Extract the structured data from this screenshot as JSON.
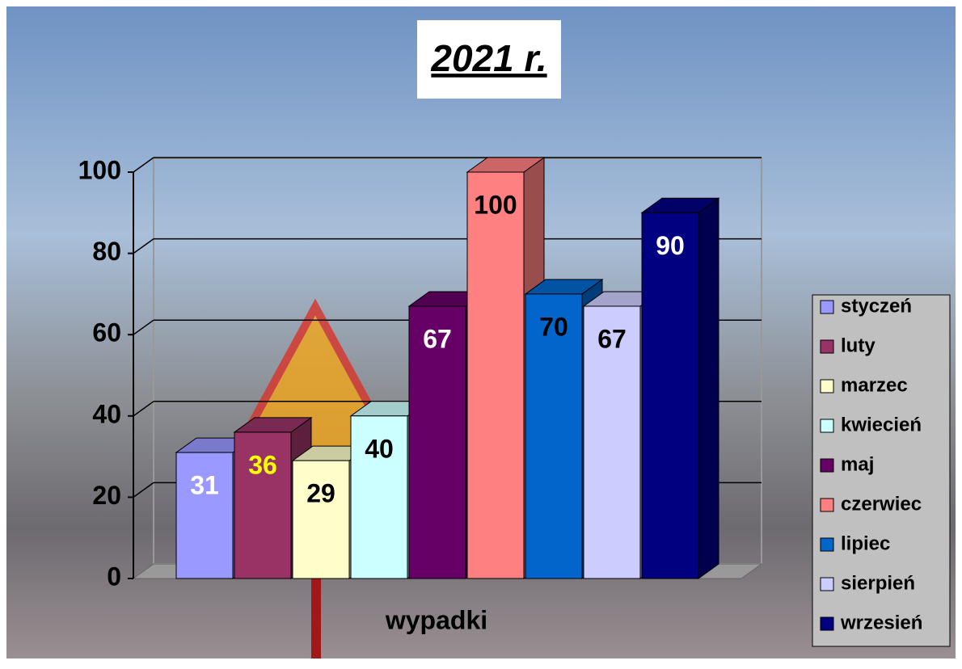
{
  "chart_data": {
    "type": "bar3d",
    "title": "2021 r.",
    "x_label": "wypadki",
    "categories": [
      "wypadki"
    ],
    "series": [
      {
        "name": "styczeń",
        "color": "#9999ff",
        "label_color": "#ffffff",
        "values": [
          31
        ]
      },
      {
        "name": "luty",
        "color": "#993366",
        "label_color": "#ffff00",
        "values": [
          36
        ]
      },
      {
        "name": "marzec",
        "color": "#ffffcc",
        "label_color": "#000000",
        "values": [
          29
        ]
      },
      {
        "name": "kwiecień",
        "color": "#ccffff",
        "label_color": "#000000",
        "values": [
          40
        ]
      },
      {
        "name": "maj",
        "color": "#660066",
        "label_color": "#ffffff",
        "values": [
          67
        ]
      },
      {
        "name": "czerwiec",
        "color": "#ff8080",
        "label_color": "#000000",
        "values": [
          100
        ]
      },
      {
        "name": "lipiec",
        "color": "#0066cc",
        "label_color": "#000000",
        "values": [
          70
        ]
      },
      {
        "name": "sierpień",
        "color": "#ccccff",
        "label_color": "#000000",
        "values": [
          67
        ]
      },
      {
        "name": "wrzesień",
        "color": "#000080",
        "label_color": "#ffffff",
        "values": [
          90
        ]
      }
    ],
    "ylim": [
      0,
      100
    ],
    "yticks": [
      0,
      20,
      40,
      60,
      80,
      100
    ],
    "grid": true,
    "legend": "right"
  }
}
